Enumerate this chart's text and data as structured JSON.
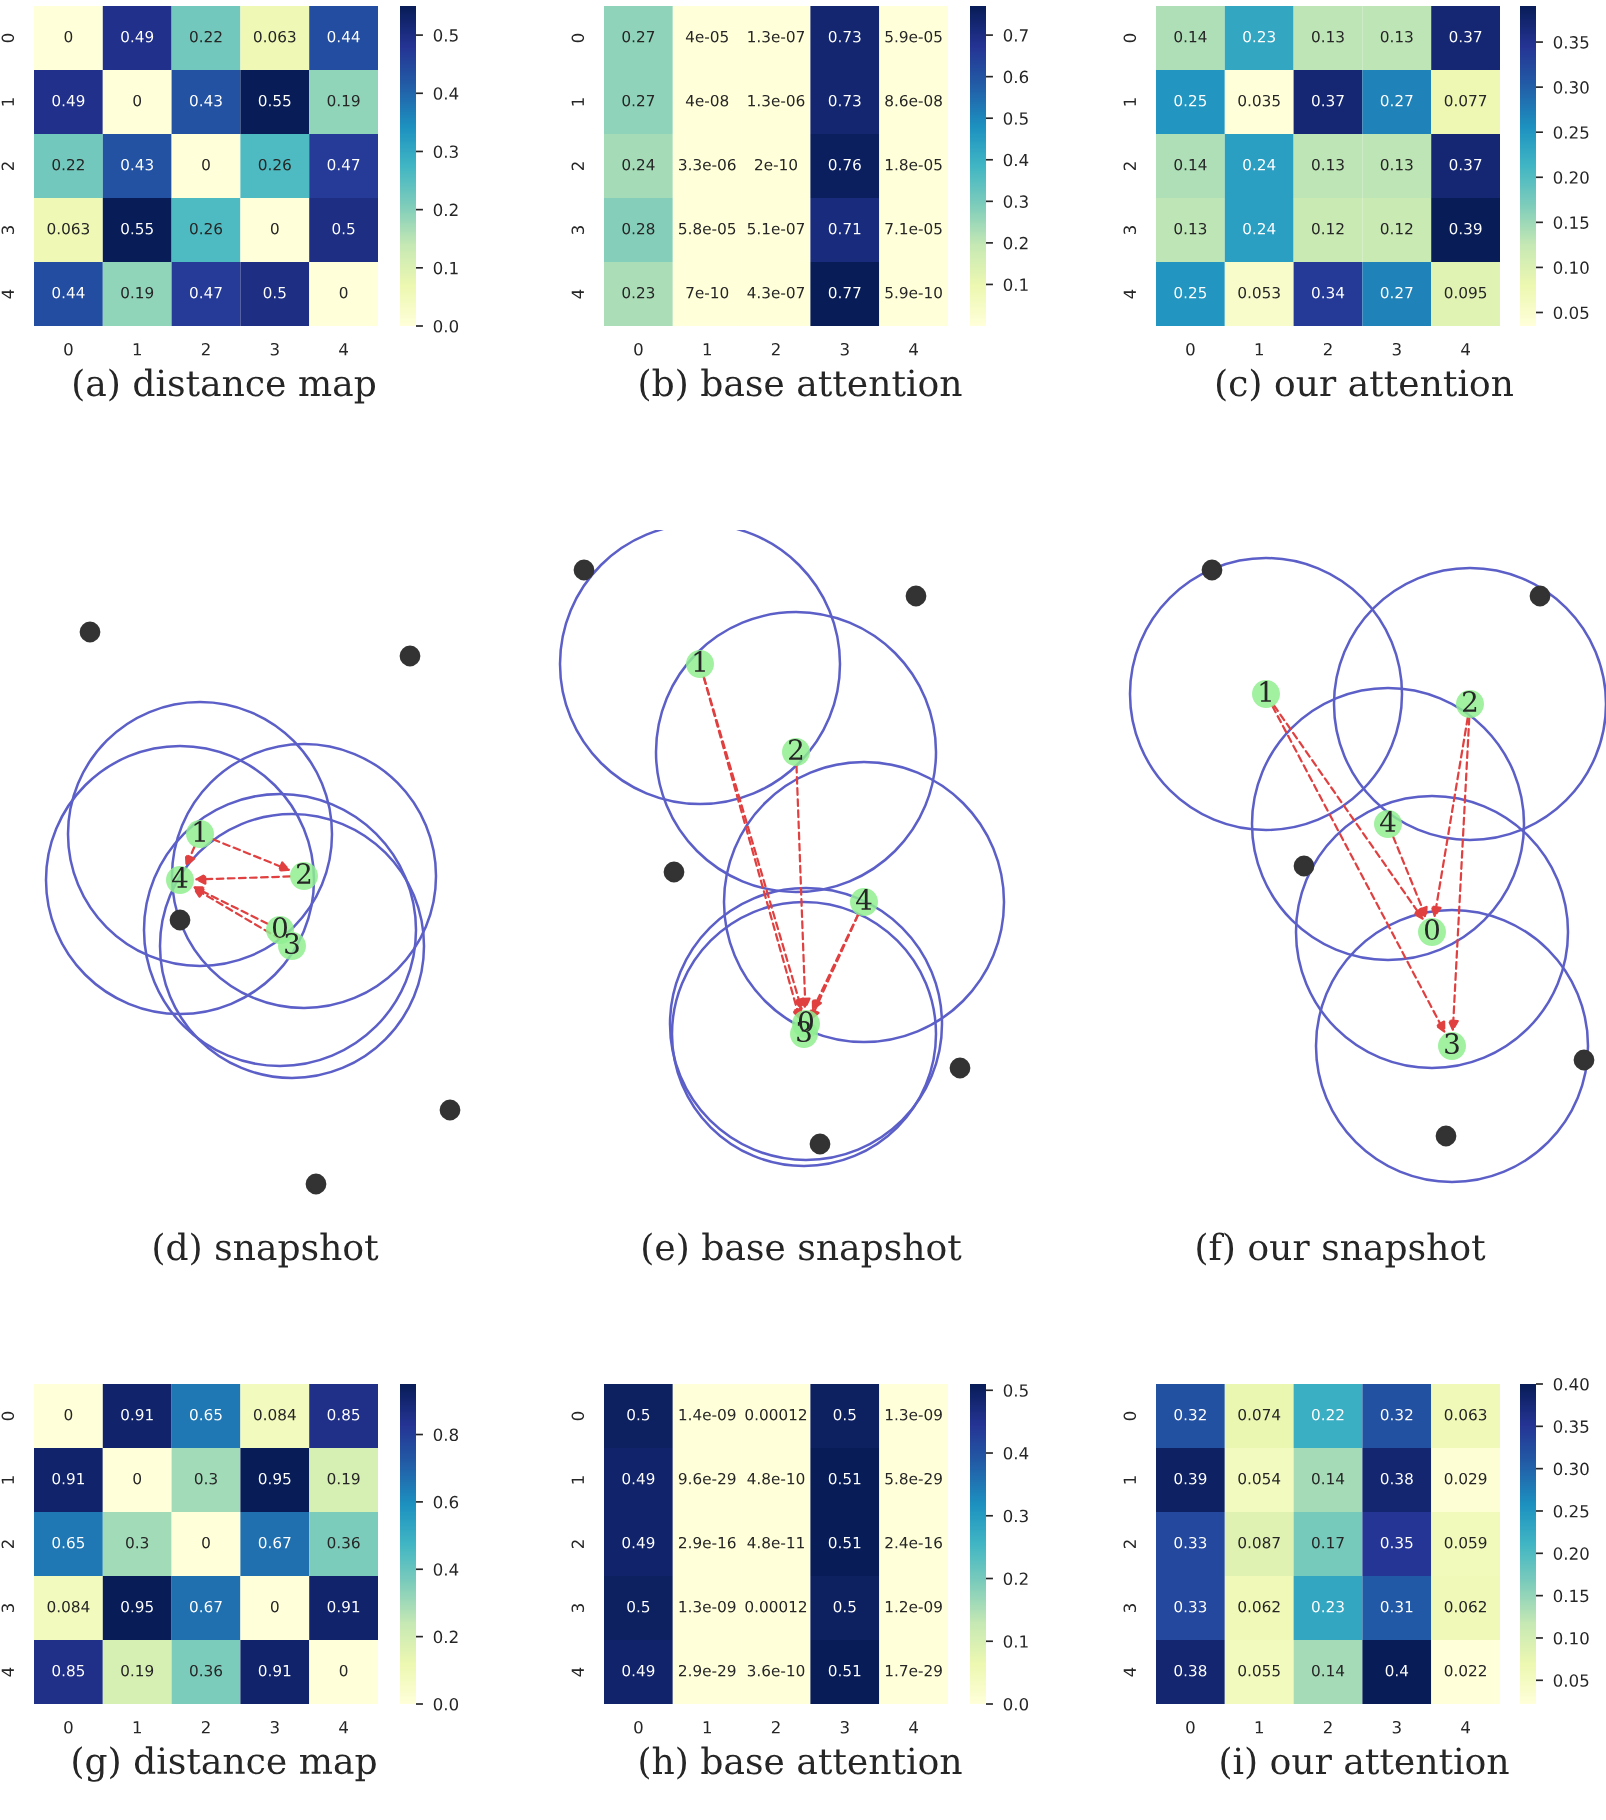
{
  "chart_data": [
    {
      "type": "heatmap",
      "title": "(a) distance map",
      "categories": [
        "0",
        "1",
        "2",
        "3",
        "4"
      ],
      "y_categories": [
        "0",
        "1",
        "2",
        "3",
        "4"
      ],
      "data_labels": true,
      "clim": [
        0,
        0.55
      ],
      "cticks": [
        {
          "value": 0,
          "label": "0.0"
        },
        0.1,
        0.2,
        0.3,
        0.4,
        0.5
      ],
      "cells": [
        [
          0,
          0.49,
          0.22,
          0.063,
          0.44
        ],
        [
          0.49,
          0,
          0.43,
          0.55,
          0.19
        ],
        [
          0.22,
          0.43,
          0,
          0.26,
          0.47
        ],
        [
          0.063,
          0.55,
          0.26,
          0,
          0.5
        ],
        [
          0.44,
          0.19,
          0.47,
          0.5,
          0
        ]
      ]
    },
    {
      "type": "heatmap",
      "title": "(b) base attention",
      "categories": [
        "0",
        "1",
        "2",
        "3",
        "4"
      ],
      "y_categories": [
        "0",
        "1",
        "2",
        "3",
        "4"
      ],
      "data_labels": true,
      "clim": [
        2e-10,
        0.77
      ],
      "cticks": [
        0.1,
        0.2,
        0.3,
        0.4,
        0.5,
        0.6,
        0.7
      ],
      "cells": [
        [
          0.27,
          4e-05,
          1.3e-07,
          0.73,
          5.9e-05
        ],
        [
          0.27,
          4e-08,
          1.3e-06,
          0.73,
          8.6e-08
        ],
        [
          0.24,
          3.3e-06,
          2e-10,
          0.76,
          1.8e-05
        ],
        [
          0.28,
          5.8e-05,
          5.1e-07,
          0.71,
          7.1e-05
        ],
        [
          0.23,
          7e-10,
          4.3e-07,
          0.77,
          5.9e-10
        ]
      ]
    },
    {
      "type": "heatmap",
      "title": "(c) our attention",
      "categories": [
        "0",
        "1",
        "2",
        "3",
        "4"
      ],
      "y_categories": [
        "0",
        "1",
        "2",
        "3",
        "4"
      ],
      "data_labels": true,
      "clim": [
        0.035,
        0.39
      ],
      "cticks": [
        0.05,
        {
          "value": 0.1,
          "label": "0.10"
        },
        0.15,
        {
          "value": 0.2,
          "label": "0.20"
        },
        0.25,
        {
          "value": 0.3,
          "label": "0.30"
        },
        0.35
      ],
      "cells": [
        [
          0.14,
          0.23,
          0.13,
          0.13,
          0.37
        ],
        [
          0.25,
          0.035,
          0.37,
          0.27,
          0.077
        ],
        [
          0.14,
          0.24,
          0.13,
          0.13,
          0.37
        ],
        [
          0.13,
          0.24,
          0.12,
          0.12,
          0.39
        ],
        [
          0.25,
          0.053,
          0.34,
          0.27,
          0.095
        ]
      ]
    },
    {
      "type": "other",
      "title": "(d) snapshot",
      "annotations": [
        "0",
        "1",
        "2",
        "3",
        "4"
      ]
    },
    {
      "type": "other",
      "title": "(e) base snapshot",
      "annotations": [
        "0",
        "1",
        "2",
        "3",
        "4"
      ]
    },
    {
      "type": "other",
      "title": "(f) our snapshot",
      "annotations": [
        "0",
        "1",
        "2",
        "3",
        "4"
      ]
    },
    {
      "type": "heatmap",
      "title": "(g) distance map",
      "categories": [
        "0",
        "1",
        "2",
        "3",
        "4"
      ],
      "y_categories": [
        "0",
        "1",
        "2",
        "3",
        "4"
      ],
      "data_labels": true,
      "clim": [
        0,
        0.95
      ],
      "cticks": [
        {
          "value": 0,
          "label": "0.0"
        },
        0.2,
        0.4,
        0.6,
        0.8
      ],
      "cells": [
        [
          0,
          0.91,
          0.65,
          0.084,
          0.85
        ],
        [
          0.91,
          0,
          0.3,
          0.95,
          0.19
        ],
        [
          0.65,
          0.3,
          0,
          0.67,
          0.36
        ],
        [
          0.084,
          0.95,
          0.67,
          0,
          0.91
        ],
        [
          0.85,
          0.19,
          0.36,
          0.91,
          0
        ]
      ]
    },
    {
      "type": "heatmap",
      "title": "(h) base attention",
      "categories": [
        "0",
        "1",
        "2",
        "3",
        "4"
      ],
      "y_categories": [
        "0",
        "1",
        "2",
        "3",
        "4"
      ],
      "data_labels": true,
      "clim": [
        0,
        0.51
      ],
      "cticks": [
        {
          "value": 0,
          "label": "0.0"
        },
        0.1,
        0.2,
        0.3,
        0.4,
        0.5
      ],
      "cells": [
        [
          0.5,
          1.4e-09,
          0.00012,
          0.5,
          1.3e-09
        ],
        [
          0.49,
          9.6e-29,
          4.8e-10,
          0.51,
          5.8e-29
        ],
        [
          0.49,
          2.9e-16,
          4.8e-11,
          0.51,
          2.4e-16
        ],
        [
          0.5,
          1.3e-09,
          0.00012,
          0.5,
          1.2e-09
        ],
        [
          0.49,
          2.9e-29,
          3.6e-10,
          0.51,
          1.7e-29
        ]
      ]
    },
    {
      "type": "heatmap",
      "title": "(i) our attention",
      "categories": [
        "0",
        "1",
        "2",
        "3",
        "4"
      ],
      "y_categories": [
        "0",
        "1",
        "2",
        "3",
        "4"
      ],
      "data_labels": true,
      "clim": [
        0.022,
        0.4
      ],
      "cticks": [
        0.05,
        {
          "value": 0.1,
          "label": "0.10"
        },
        0.15,
        {
          "value": 0.2,
          "label": "0.20"
        },
        0.25,
        {
          "value": 0.3,
          "label": "0.30"
        },
        0.35,
        {
          "value": 0.4,
          "label": "0.40"
        }
      ],
      "cells": [
        [
          0.32,
          0.074,
          0.22,
          0.32,
          0.063
        ],
        [
          0.39,
          0.054,
          0.14,
          0.38,
          0.029
        ],
        [
          0.33,
          0.087,
          0.17,
          0.35,
          0.059
        ],
        [
          0.33,
          0.062,
          0.23,
          0.31,
          0.062
        ],
        [
          0.38,
          0.055,
          0.14,
          0.4,
          0.022
        ]
      ]
    }
  ]
}
